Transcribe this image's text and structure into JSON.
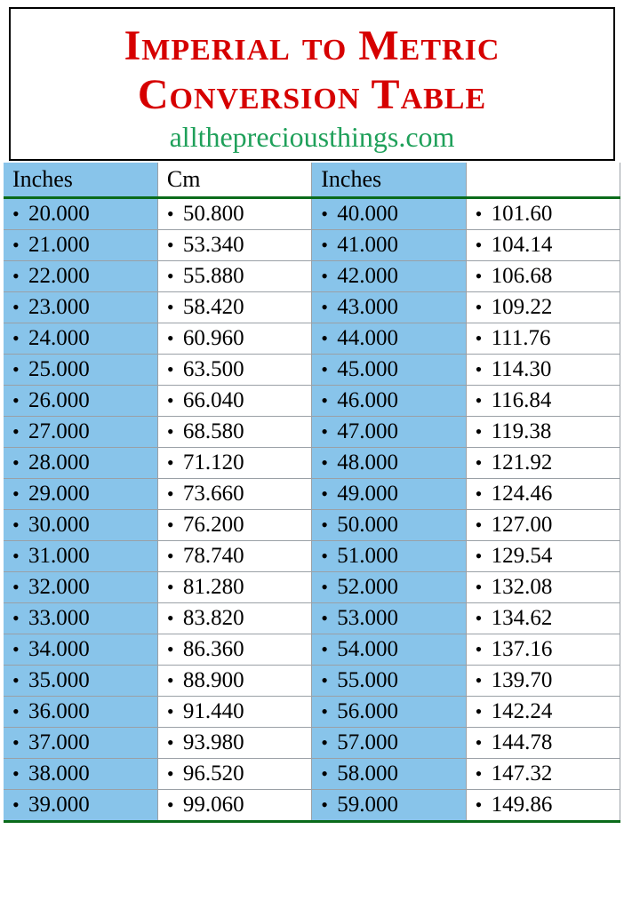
{
  "header": {
    "title": "Imperial to Metric Conversion Table",
    "subtitle": "allthepreciousthings.com"
  },
  "table": {
    "columns": [
      "Inches",
      "Cm",
      "Inches",
      ""
    ],
    "column_bg": [
      "blue",
      "white",
      "blue",
      "white"
    ],
    "header_border_color": "#0a6b1a",
    "blue_bg": "#88c4ea",
    "grid_color": "#9aa0a6",
    "title_color": "#d60000",
    "subtitle_color": "#1fa05a",
    "font_family": "Times New Roman",
    "title_fontsize": 48,
    "header_fontsize": 26,
    "cell_fontsize": 25,
    "rows": [
      [
        "20.000",
        "50.800",
        "40.000",
        "101.60"
      ],
      [
        "21.000",
        "53.340",
        "41.000",
        "104.14"
      ],
      [
        "22.000",
        "55.880",
        "42.000",
        "106.68"
      ],
      [
        "23.000",
        "58.420",
        "43.000",
        "109.22"
      ],
      [
        "24.000",
        "60.960",
        "44.000",
        "111.76"
      ],
      [
        "25.000",
        "63.500",
        "45.000",
        "114.30"
      ],
      [
        "26.000",
        "66.040",
        "46.000",
        "116.84"
      ],
      [
        "27.000",
        "68.580",
        "47.000",
        "119.38"
      ],
      [
        "28.000",
        "71.120",
        "48.000",
        "121.92"
      ],
      [
        "29.000",
        "73.660",
        "49.000",
        "124.46"
      ],
      [
        "30.000",
        "76.200",
        "50.000",
        "127.00"
      ],
      [
        "31.000",
        "78.740",
        "51.000",
        "129.54"
      ],
      [
        "32.000",
        "81.280",
        "52.000",
        "132.08"
      ],
      [
        "33.000",
        "83.820",
        "53.000",
        "134.62"
      ],
      [
        "34.000",
        "86.360",
        "54.000",
        "137.16"
      ],
      [
        "35.000",
        "88.900",
        "55.000",
        "139.70"
      ],
      [
        "36.000",
        "91.440",
        "56.000",
        "142.24"
      ],
      [
        "37.000",
        "93.980",
        "57.000",
        "144.78"
      ],
      [
        "38.000",
        "96.520",
        "58.000",
        "147.32"
      ],
      [
        "39.000",
        "99.060",
        "59.000",
        "149.86"
      ]
    ]
  }
}
